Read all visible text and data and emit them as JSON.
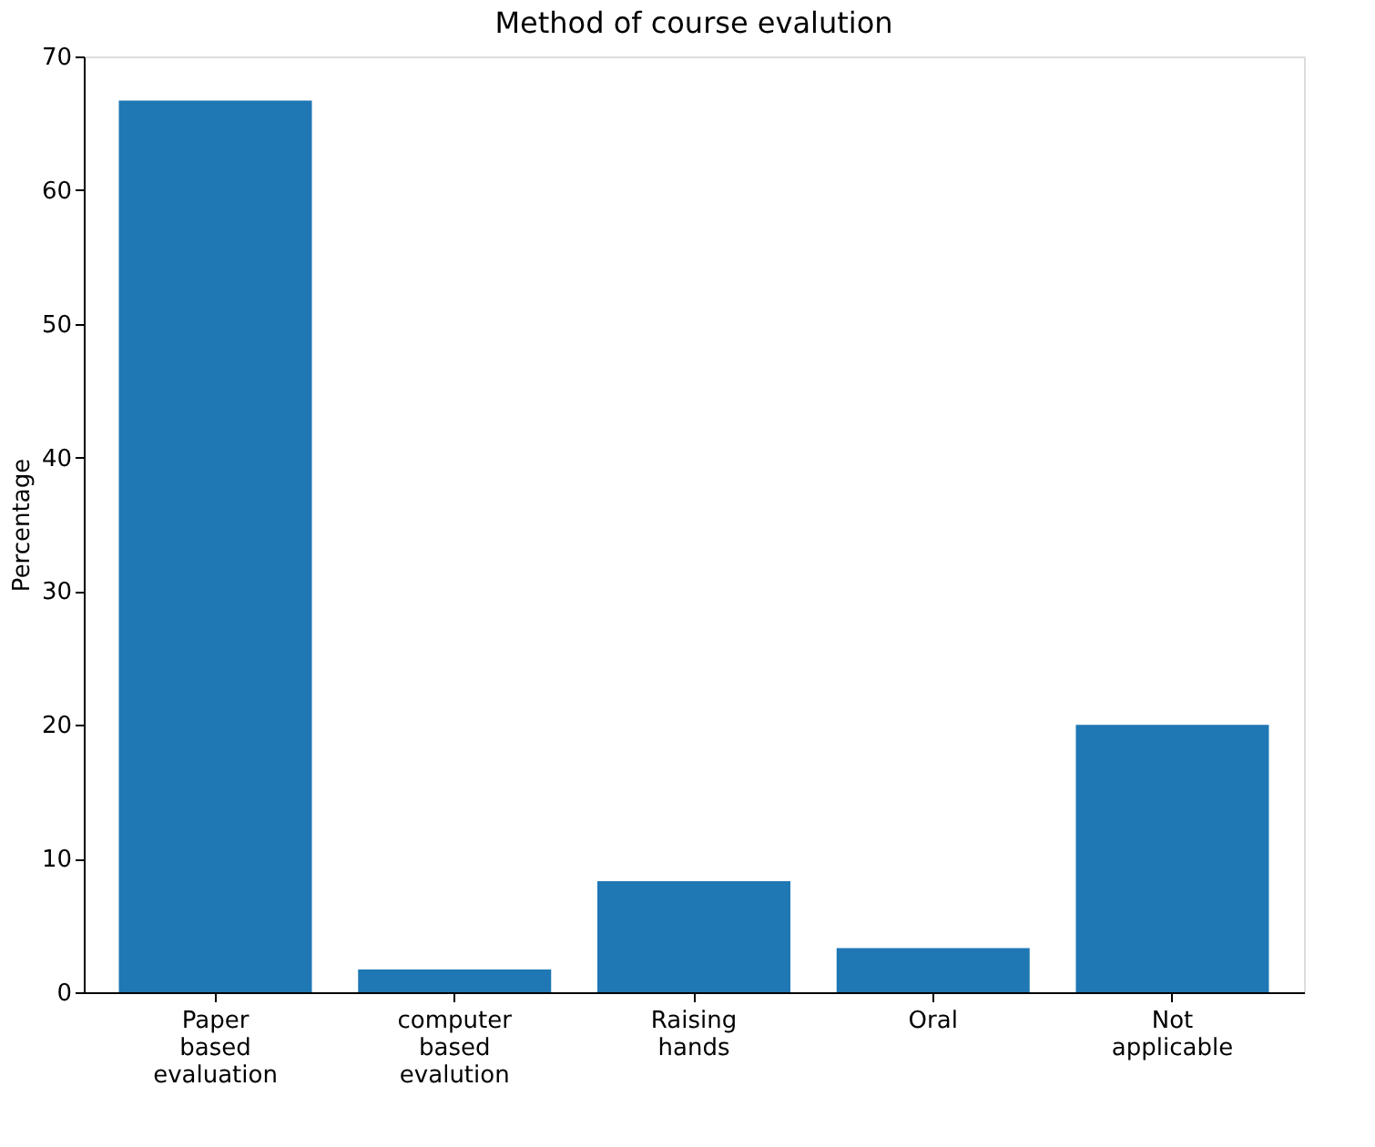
{
  "chart_data": {
    "type": "bar",
    "title": "Method of course evalution",
    "ylabel": "Percentage",
    "categories": [
      "Paper based evaluation",
      "computer based evalution",
      "Raising hands",
      "Oral",
      "Not applicable"
    ],
    "values": [
      66.7,
      1.7,
      8.3,
      3.3,
      20.0
    ],
    "color": "#1f77b4",
    "ylim": [
      0,
      70
    ],
    "yticks": [
      0,
      10,
      20,
      30,
      40,
      50,
      60,
      70
    ],
    "grid": false
  }
}
